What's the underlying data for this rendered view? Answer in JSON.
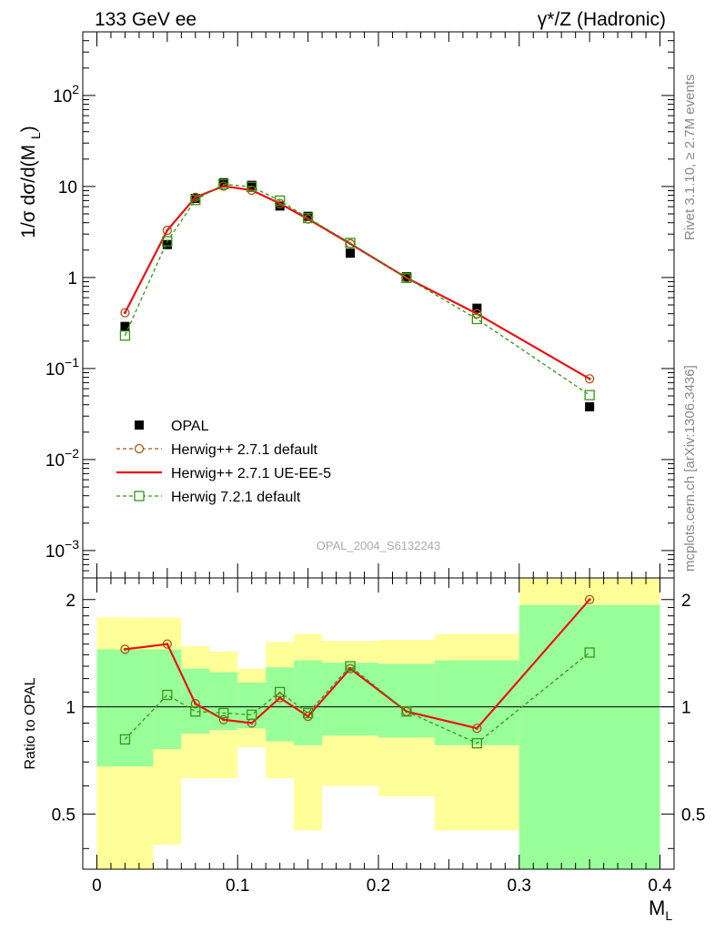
{
  "header": {
    "left": "133 GeV ee",
    "right": "γ*/Z (Hadronic)"
  },
  "side_labels": {
    "rivet": "Rivet 3.1.10, ≥ 2.7M events",
    "mcplots": "mcplots.cern.ch [arXiv:1306.3436]"
  },
  "watermark": "OPAL_2004_S6132243",
  "main_panel": {
    "ylabel": "1/σ dσ/d(M_L)",
    "yscale": "log",
    "ylim": [
      0.0005,
      500
    ],
    "y_ticks": [
      {
        "value": 0.001,
        "base": "10",
        "exp": "−3"
      },
      {
        "value": 0.01,
        "base": "10",
        "exp": "−2"
      },
      {
        "value": 0.1,
        "base": "10",
        "exp": "−1"
      },
      {
        "value": 1,
        "base": "1",
        "exp": ""
      },
      {
        "value": 10,
        "base": "10",
        "exp": ""
      },
      {
        "value": 100,
        "base": "10",
        "exp": "2"
      }
    ]
  },
  "ratio_panel": {
    "ylabel": "Ratio to OPAL",
    "ylim": [
      0.35,
      2.3
    ],
    "y_ticks": [
      "0.5",
      "1",
      "2"
    ],
    "y_tick_values": [
      0.5,
      1,
      2
    ]
  },
  "x_axis": {
    "label": "M_L",
    "xlim": [
      -0.01,
      0.41
    ],
    "ticks": [
      "0",
      "0.1",
      "0.2",
      "0.3",
      "0.4"
    ],
    "tick_values": [
      0,
      0.1,
      0.2,
      0.3,
      0.4
    ]
  },
  "legend": [
    {
      "name": "OPAL",
      "style": "data",
      "color": "#000000"
    },
    {
      "name": "Herwig++ 2.7.1 default",
      "style": "dashed-circle",
      "color": "#a05a14"
    },
    {
      "name": "Herwig++ 2.7.1 UE-EE-5",
      "style": "solid",
      "color": "#ee1111"
    },
    {
      "name": "Herwig 7.2.1 default",
      "style": "dashed-square",
      "color": "#339911"
    }
  ],
  "chart_data": {
    "type": "line",
    "x": [
      0.02,
      0.05,
      0.07,
      0.09,
      0.11,
      0.13,
      0.15,
      0.18,
      0.22,
      0.27,
      0.35
    ],
    "series": [
      {
        "name": "OPAL",
        "values": [
          0.29,
          2.3,
          7.4,
          11.0,
          10.3,
          6.1,
          4.7,
          1.85,
          1.02,
          0.46,
          0.038
        ]
      },
      {
        "name": "Herwig++ 2.7.1 default",
        "values": [
          0.41,
          3.3,
          7.6,
          10.1,
          9.1,
          6.5,
          4.4,
          2.35,
          0.99,
          0.4,
          0.077
        ]
      },
      {
        "name": "Herwig++ 2.7.1 UE-EE-5",
        "values": [
          0.41,
          3.3,
          7.6,
          10.1,
          9.1,
          6.5,
          4.4,
          2.35,
          0.99,
          0.4,
          0.077
        ]
      },
      {
        "name": "Herwig 7.2.1 default",
        "values": [
          0.23,
          2.5,
          7.1,
          10.6,
          9.9,
          7.0,
          4.5,
          2.4,
          0.99,
          0.35,
          0.051
        ]
      }
    ],
    "ratio": {
      "bin_edges": [
        0.0,
        0.04,
        0.06,
        0.08,
        0.1,
        0.12,
        0.14,
        0.16,
        0.2,
        0.24,
        0.3,
        0.4
      ],
      "band_yellow": [
        [
          0.35,
          1.78
        ],
        [
          0.41,
          1.78
        ],
        [
          0.63,
          1.48
        ],
        [
          0.63,
          1.43
        ],
        [
          0.77,
          1.28
        ],
        [
          0.63,
          1.52
        ],
        [
          0.45,
          1.6
        ],
        [
          0.6,
          1.53
        ],
        [
          0.56,
          1.54
        ],
        [
          0.45,
          1.6
        ],
        [
          0.35,
          2.3
        ]
      ],
      "band_green": [
        [
          0.68,
          1.45
        ],
        [
          0.76,
          1.45
        ],
        [
          0.84,
          1.28
        ],
        [
          0.86,
          1.25
        ],
        [
          0.87,
          1.17
        ],
        [
          0.8,
          1.29
        ],
        [
          0.78,
          1.35
        ],
        [
          0.83,
          1.33
        ],
        [
          0.82,
          1.32
        ],
        [
          0.78,
          1.35
        ],
        [
          0.35,
          1.93
        ]
      ],
      "series": [
        {
          "name": "Herwig++ 2.7.1 default",
          "values": [
            1.45,
            1.5,
            1.02,
            0.92,
            0.9,
            1.06,
            0.94,
            1.28,
            0.97,
            0.87,
            2.0
          ]
        },
        {
          "name": "Herwig++ 2.7.1 UE-EE-5",
          "values": [
            1.45,
            1.5,
            1.02,
            0.92,
            0.9,
            1.06,
            0.94,
            1.28,
            0.97,
            0.87,
            2.0
          ]
        },
        {
          "name": "Herwig 7.2.1 default",
          "values": [
            0.81,
            1.08,
            0.97,
            0.96,
            0.95,
            1.1,
            0.96,
            1.3,
            0.97,
            0.79,
            1.42
          ]
        }
      ]
    }
  }
}
